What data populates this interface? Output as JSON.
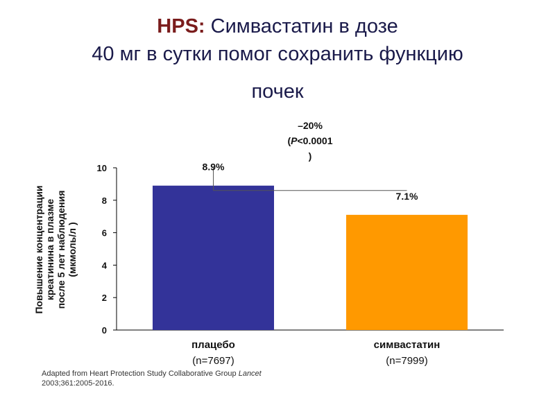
{
  "header": {
    "title_prefix": "HPS:",
    "title_line1": "Симвастатин в дозе",
    "title_line2": "40 мг в сутки помог сохранить функцию",
    "title_line3": "почек"
  },
  "chart_data": {
    "type": "bar",
    "categories": [
      "плацебо",
      "симвастатин"
    ],
    "category_notes": [
      "(n=7697)",
      "(n=7999)"
    ],
    "values": [
      8.9,
      7.1
    ],
    "value_labels": [
      "8.9%",
      "7.1%"
    ],
    "colors": [
      "#333399",
      "#ff9900"
    ],
    "ylabel": "Повышение концентрации креатинина в плазме после 5 лет наблюдения (мкмоль/л )",
    "ylabel_lines": [
      "Повышение концентрации",
      "креатинина в плазме",
      "после 5 лет наблюдения",
      "(мкмоль/л )"
    ],
    "ylim": [
      0,
      10
    ],
    "yticks": [
      0,
      2,
      4,
      6,
      8,
      10
    ],
    "ytick_labels": [
      "0",
      "2",
      "4",
      "6",
      "8",
      "10"
    ],
    "grid": false,
    "annotation": {
      "diff": "–20%",
      "p_prefix": "(",
      "p_italic": "P",
      "p_rest": "<0.0001",
      "p_close": ")"
    }
  },
  "source": {
    "prefix": "Adapted from Heart Protection Study Collaborative Group ",
    "journal": "Lancet",
    "rest": "2003;361:2005-2016."
  }
}
